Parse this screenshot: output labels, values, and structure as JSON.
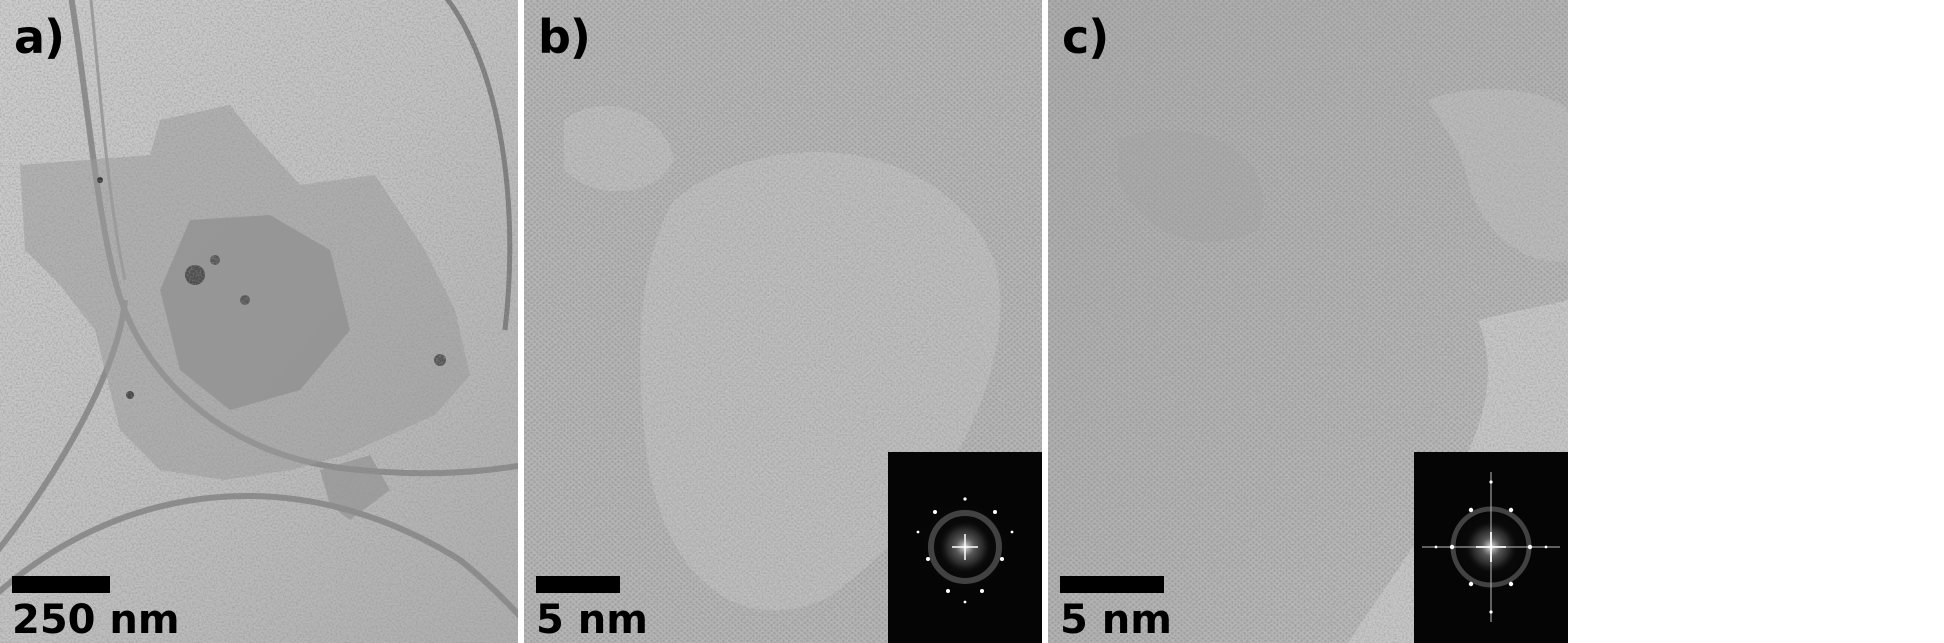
{
  "panels": [
    {
      "id": "a",
      "label": "a)",
      "scale_label": "250 nm"
    },
    {
      "id": "b",
      "label": "b)",
      "scale_label": "5 nm"
    },
    {
      "id": "c",
      "label": "c)",
      "scale_label": "5 nm"
    }
  ]
}
